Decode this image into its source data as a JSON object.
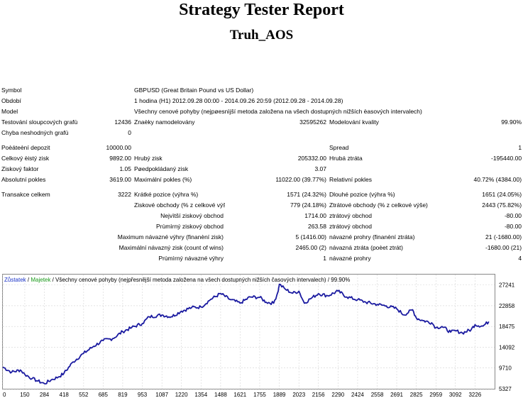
{
  "report": {
    "title": "Strategy Tester Report",
    "subtitle": "Truh_AOS"
  },
  "rows": {
    "symbol_label": "Symbol",
    "symbol_value": "GBPUSD (Great Britain Pound vs US Dollar)",
    "period_label": "Období",
    "period_value": "1 hodina (H1) 2012.09.28 00:00 - 2014.09.26 20:59 (2012.09.28 - 2014.09.28)",
    "model_label": "Model",
    "model_value": "Všechny cenové pohyby (nejpøesnìjší metoda založena na všech dostupných nižších èasových intervalech)",
    "bars_label": "Testování sloupcových grafù",
    "bars_value": "12436",
    "ticks_label": "Znaèky namodelovány",
    "ticks_value": "32595262",
    "quality_label": "Modelování kvality",
    "quality_value": "99.90%",
    "mismatch_label": "Chyba neshodných grafù",
    "mismatch_value": "0",
    "deposit_label": "Poèáteèní depozit",
    "deposit_value": "10000.00",
    "spread_label": "Spread",
    "spread_value": "1",
    "netprofit_label": "Celkový èistý zisk",
    "netprofit_value": "9892.00",
    "grossprofit_label": "Hrubý zisk",
    "grossprofit_value": "205332.00",
    "grossloss_label": "Hrubá ztráta",
    "grossloss_value": "-195440.00",
    "pf_label": "Ziskový faktor",
    "pf_value": "1.05",
    "payoff_label": "Pøedpokládaný zisk",
    "payoff_value": "3.07",
    "absdd_label": "Absolutní pokles",
    "absdd_value": "3619.00",
    "maxdd_label": "Maximální pokles (%)",
    "maxdd_value": "11022.00 (39.77%)",
    "reldd_label": "Relativní pokles",
    "reldd_value": "40.72% (4384.00)",
    "trades_label": "Transakce celkem",
    "trades_value": "3222",
    "short_label": "Krátké pozice (výhra %)",
    "short_value": "1571 (24.32%)",
    "long_label": "Dlouhé pozice (výhra %)",
    "long_value": "1651 (24.05%)",
    "profit_trades_label": "Ziskové obchody (% z celkové výše)",
    "profit_trades_value": "779 (24.18%)",
    "loss_trades_label": "Ztrátové obchody (% z celkové výše)",
    "loss_trades_value": "2443 (75.82%)",
    "largest_label": "Nejvìtší",
    "largest_profit_label": "ziskový obchod",
    "largest_profit_value": "1714.00",
    "largest_loss_label": "ztrátový obchod",
    "largest_loss_value": "-80.00",
    "average_label": "Prùmìrný",
    "average_profit_label": "ziskový obchod",
    "average_profit_value": "263.58",
    "average_loss_label": "ztrátový obchod",
    "average_loss_value": "-80.00",
    "maximum_label": "Maximum",
    "max_consec_wins_label": "návazné výhry (finanèní zisk)",
    "max_consec_wins_value": "5 (1416.00)",
    "max_consec_losses_label": "návazné prohry (finanèní ztráta)",
    "max_consec_losses_value": "21 (-1680.00)",
    "maximal_label": "Maximální",
    "maximal_profit_label": "návazný zisk (count of wins)",
    "maximal_profit_value": "2465.00 (2)",
    "maximal_loss_label": "návazná ztráta (poèet ztrát)",
    "maximal_loss_value": "-1680.00 (21)",
    "avg_consec_label": "Prùmìrný",
    "avg_consec_wins_label": "návazné výhry",
    "avg_consec_wins_value": "1",
    "avg_consec_losses_label": "návazné prohry",
    "avg_consec_losses_value": "4"
  },
  "legend": {
    "balance": "Zůstatek",
    "sep1": " / ",
    "equity": "Majetek",
    "rest": " / Všechny cenové pohyby (nejpřesnější metoda založena na všech dostupných nižších časových intervalech) / 99.90%"
  },
  "colors": {
    "balance": "#1a1aa0",
    "equity": "#1a9a1a",
    "grid": "#d4d4d4"
  },
  "chart_data": {
    "type": "line",
    "x_ticks": [
      "0",
      "150",
      "284",
      "418",
      "552",
      "685",
      "819",
      "953",
      "1087",
      "1220",
      "1354",
      "1488",
      "1621",
      "1755",
      "1889",
      "2023",
      "2156",
      "2290",
      "2424",
      "2558",
      "2691",
      "2825",
      "2959",
      "3092",
      "3226"
    ],
    "y_ticks": [
      "27241",
      "22858",
      "18475",
      "14092",
      "9710",
      "5327"
    ],
    "ylim": [
      5327,
      29432
    ],
    "xlim": [
      0,
      3360
    ],
    "series": [
      {
        "x": [
          0,
          60,
          120,
          150,
          200,
          240,
          284,
          330,
          380,
          418,
          480,
          552,
          620,
          685,
          750,
          819,
          880,
          953,
          1000,
          1087,
          1150,
          1220,
          1290,
          1354,
          1420,
          1488,
          1550,
          1621,
          1690,
          1755,
          1800,
          1850,
          1880,
          1889,
          1930,
          1980,
          2023,
          2060,
          2100,
          2156,
          2220,
          2290,
          2350,
          2424,
          2480,
          2558,
          2620,
          2691,
          2740,
          2800,
          2825,
          2870,
          2930,
          2959,
          3000,
          3060,
          3092,
          3140,
          3200,
          3226,
          3280,
          3320
        ],
        "y": [
          9910,
          8830,
          9290,
          8380,
          7500,
          6960,
          6390,
          7200,
          7820,
          8620,
          11000,
          12800,
          14300,
          15500,
          15910,
          17400,
          18240,
          19120,
          20520,
          20900,
          20520,
          21700,
          22470,
          22590,
          24200,
          25420,
          24200,
          23400,
          24700,
          24620,
          23600,
          23390,
          25830,
          27380,
          26340,
          25490,
          25930,
          23390,
          24300,
          25410,
          24950,
          25940,
          24700,
          24120,
          23600,
          23130,
          22820,
          22220,
          20920,
          22000,
          20260,
          19720,
          19270,
          18210,
          18470,
          17280,
          17580,
          17110,
          17820,
          18860,
          18550,
          19500
        ]
      }
    ]
  }
}
